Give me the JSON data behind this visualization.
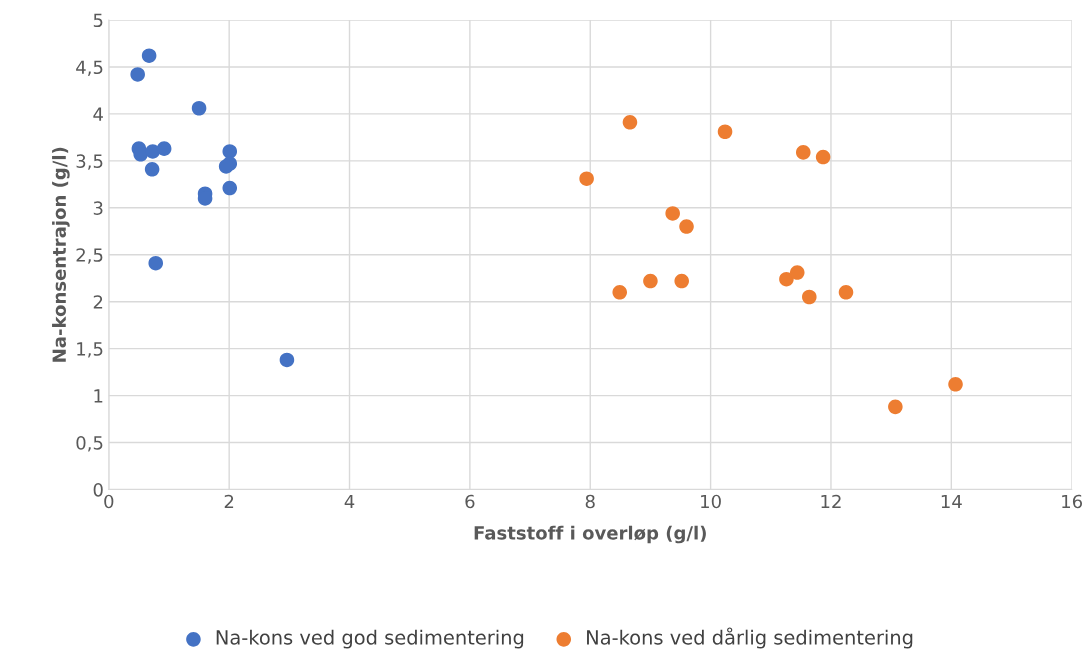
{
  "chart_data": {
    "type": "scatter",
    "xlabel": "Faststoff i overløp (g/l)",
    "ylabel": "Na-konsentrajon (g/l)",
    "xlim": [
      0,
      16
    ],
    "xticks": [
      0,
      2,
      4,
      6,
      8,
      10,
      12,
      14,
      16
    ],
    "ylim": [
      0,
      5
    ],
    "yticks": [
      0,
      {
        "value": 0.5,
        "label": "0,5"
      },
      1,
      {
        "value": 1.5,
        "label": "1,5"
      },
      2,
      {
        "value": 2.5,
        "label": "2,5"
      },
      3,
      {
        "value": 3.5,
        "label": "3,5"
      },
      4,
      {
        "value": 4.5,
        "label": "4,5"
      },
      5
    ],
    "grid": true,
    "legend": "bottom",
    "marker": "circle",
    "series": [
      {
        "name": "Na-kons ved god sedimentering",
        "color": "#4472c4",
        "x": [
          0.48,
          0.67,
          1.5,
          0.5,
          0.53,
          0.73,
          0.92,
          0.72,
          2.01,
          2.01,
          1.95,
          1.6,
          1.6,
          2.01,
          0.78,
          2.96
        ],
        "values": [
          4.42,
          4.62,
          4.06,
          3.63,
          3.57,
          3.6,
          3.63,
          3.41,
          3.6,
          3.47,
          3.44,
          3.15,
          3.1,
          3.21,
          2.41,
          1.38
        ]
      },
      {
        "name": "Na-kons ved dårlig sedimentering",
        "color": "#ed7d31",
        "x": [
          7.94,
          8.66,
          10.24,
          11.54,
          11.87,
          9.37,
          9.6,
          8.49,
          9.0,
          9.52,
          11.26,
          11.44,
          11.64,
          12.25,
          13.07,
          14.07
        ],
        "values": [
          3.31,
          3.91,
          3.81,
          3.59,
          3.54,
          2.94,
          2.8,
          2.1,
          2.22,
          2.22,
          2.24,
          2.31,
          2.05,
          2.1,
          0.88,
          1.12
        ]
      }
    ]
  }
}
